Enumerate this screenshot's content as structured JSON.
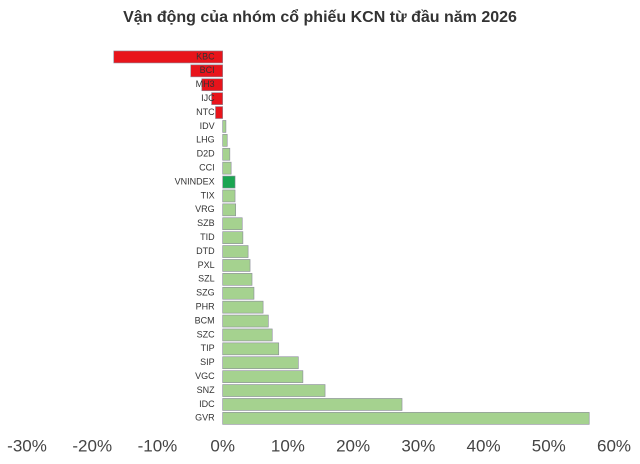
{
  "chart_data": {
    "type": "hbar",
    "title": "Vận động của nhóm cổ phiếu KCN từ đầu năm 2026",
    "categories": [
      "KBC",
      "BCI",
      "MH3",
      "IJC",
      "NTC",
      "IDV",
      "LHG",
      "D2D",
      "CCI",
      "VNINDEX",
      "TIX",
      "VRG",
      "SZB",
      "TID",
      "DTD",
      "PXL",
      "SZL",
      "SZG",
      "PHR",
      "BCM",
      "SZC",
      "TIP",
      "SIP",
      "VGC",
      "SNZ",
      "IDC",
      "GVR"
    ],
    "values": [
      -16.7,
      -4.9,
      -3.2,
      -1.7,
      -1.1,
      0.5,
      0.7,
      1.1,
      1.3,
      1.9,
      1.9,
      2.0,
      3.0,
      3.1,
      3.9,
      4.2,
      4.5,
      4.8,
      6.2,
      7.0,
      7.6,
      8.6,
      11.6,
      12.3,
      15.7,
      27.5,
      56.2
    ],
    "colors": [
      "#e8141b",
      "#e8141b",
      "#e8141b",
      "#e8141b",
      "#e8141b",
      "#a5d28f",
      "#a5d28f",
      "#a5d28f",
      "#a5d28f",
      "#1aa551",
      "#a5d28f",
      "#a5d28f",
      "#a5d28f",
      "#a5d28f",
      "#a5d28f",
      "#a5d28f",
      "#a5d28f",
      "#a5d28f",
      "#a5d28f",
      "#a5d28f",
      "#a5d28f",
      "#a5d28f",
      "#a5d28f",
      "#a5d28f",
      "#a5d28f",
      "#a5d28f",
      "#a5d28f"
    ],
    "xlim": [
      -30,
      60
    ],
    "xticks": [
      {
        "value": -30,
        "label": "-30%"
      },
      {
        "value": -20,
        "label": "-20%"
      },
      {
        "value": -10,
        "label": "-10%"
      },
      {
        "value": 0,
        "label": "0%"
      },
      {
        "value": 10,
        "label": "10%"
      },
      {
        "value": 20,
        "label": "20%"
      },
      {
        "value": 30,
        "label": "30%"
      },
      {
        "value": 40,
        "label": "40%"
      },
      {
        "value": 50,
        "label": "50%"
      },
      {
        "value": 60,
        "label": "60%"
      }
    ]
  }
}
